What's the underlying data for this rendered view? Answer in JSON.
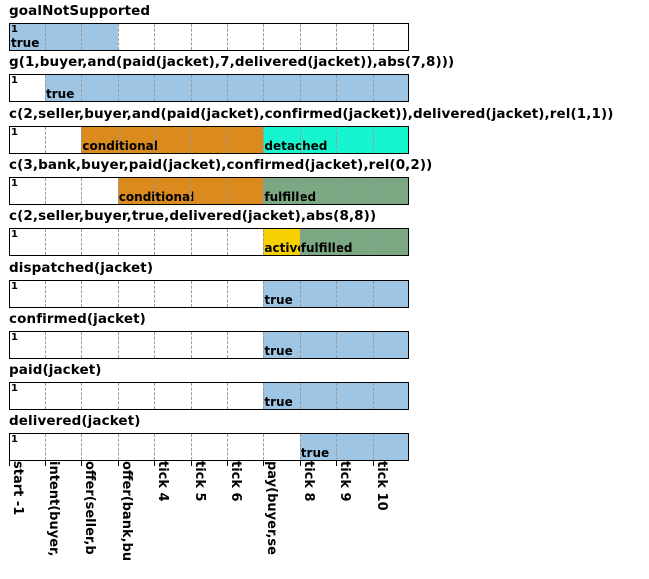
{
  "colors": {
    "true": "#9fc5e4",
    "conditional": "#db8a1e",
    "detached": "#16f5cf",
    "fulfilled": "#7ba883",
    "active": "#f6d000"
  },
  "columns": 11,
  "rows": [
    {
      "label": "goalNotSupported",
      "marker": "1",
      "segments": [
        {
          "state": "true",
          "label": "true",
          "from": 0,
          "to": 3
        }
      ]
    },
    {
      "label": "g(1,buyer,and(paid(jacket),7,delivered(jacket)),abs(7,8)))",
      "marker": "1",
      "segments": [
        {
          "state": "true",
          "label": "true",
          "from": 1,
          "to": 11
        }
      ]
    },
    {
      "label": "c(2,seller,buyer,and(paid(jacket),confirmed(jacket)),delivered(jacket),rel(1,1))",
      "marker": "1",
      "segments": [
        {
          "state": "conditional",
          "label": "conditional",
          "from": 2,
          "to": 7
        },
        {
          "state": "detached",
          "label": "detached",
          "from": 7,
          "to": 11
        }
      ]
    },
    {
      "label": "c(3,bank,buyer,paid(jacket),confirmed(jacket),rel(0,2))",
      "marker": "1",
      "segments": [
        {
          "state": "conditional",
          "label": "conditional",
          "from": 3,
          "to": 7
        },
        {
          "state": "fulfilled",
          "label": "fulfilled",
          "from": 7,
          "to": 11
        }
      ]
    },
    {
      "label": "c(2,seller,buyer,true,delivered(jacket),abs(8,8))",
      "marker": "1",
      "segments": [
        {
          "state": "active",
          "label": "active",
          "from": 7,
          "to": 8
        },
        {
          "state": "fulfilled",
          "label": "fulfilled",
          "from": 8,
          "to": 11
        }
      ]
    },
    {
      "label": "dispatched(jacket)",
      "marker": "1",
      "segments": [
        {
          "state": "true",
          "label": "true",
          "from": 7,
          "to": 11
        }
      ]
    },
    {
      "label": "confirmed(jacket)",
      "marker": "1",
      "segments": [
        {
          "state": "true",
          "label": "true",
          "from": 7,
          "to": 11
        }
      ]
    },
    {
      "label": "paid(jacket)",
      "marker": "1",
      "segments": [
        {
          "state": "true",
          "label": "true",
          "from": 7,
          "to": 11
        }
      ]
    },
    {
      "label": "delivered(jacket)",
      "marker": "1",
      "segments": [
        {
          "state": "true",
          "label": "true",
          "from": 8,
          "to": 11
        }
      ]
    }
  ],
  "ticks": [
    "start -1",
    "intent(buyer,",
    "offer(seller,b",
    "offer(bank,bu",
    "tick 4",
    "tick 5",
    "tick 6",
    "pay(buyer,se",
    "tick 8",
    "tick 9",
    "tick 10"
  ]
}
